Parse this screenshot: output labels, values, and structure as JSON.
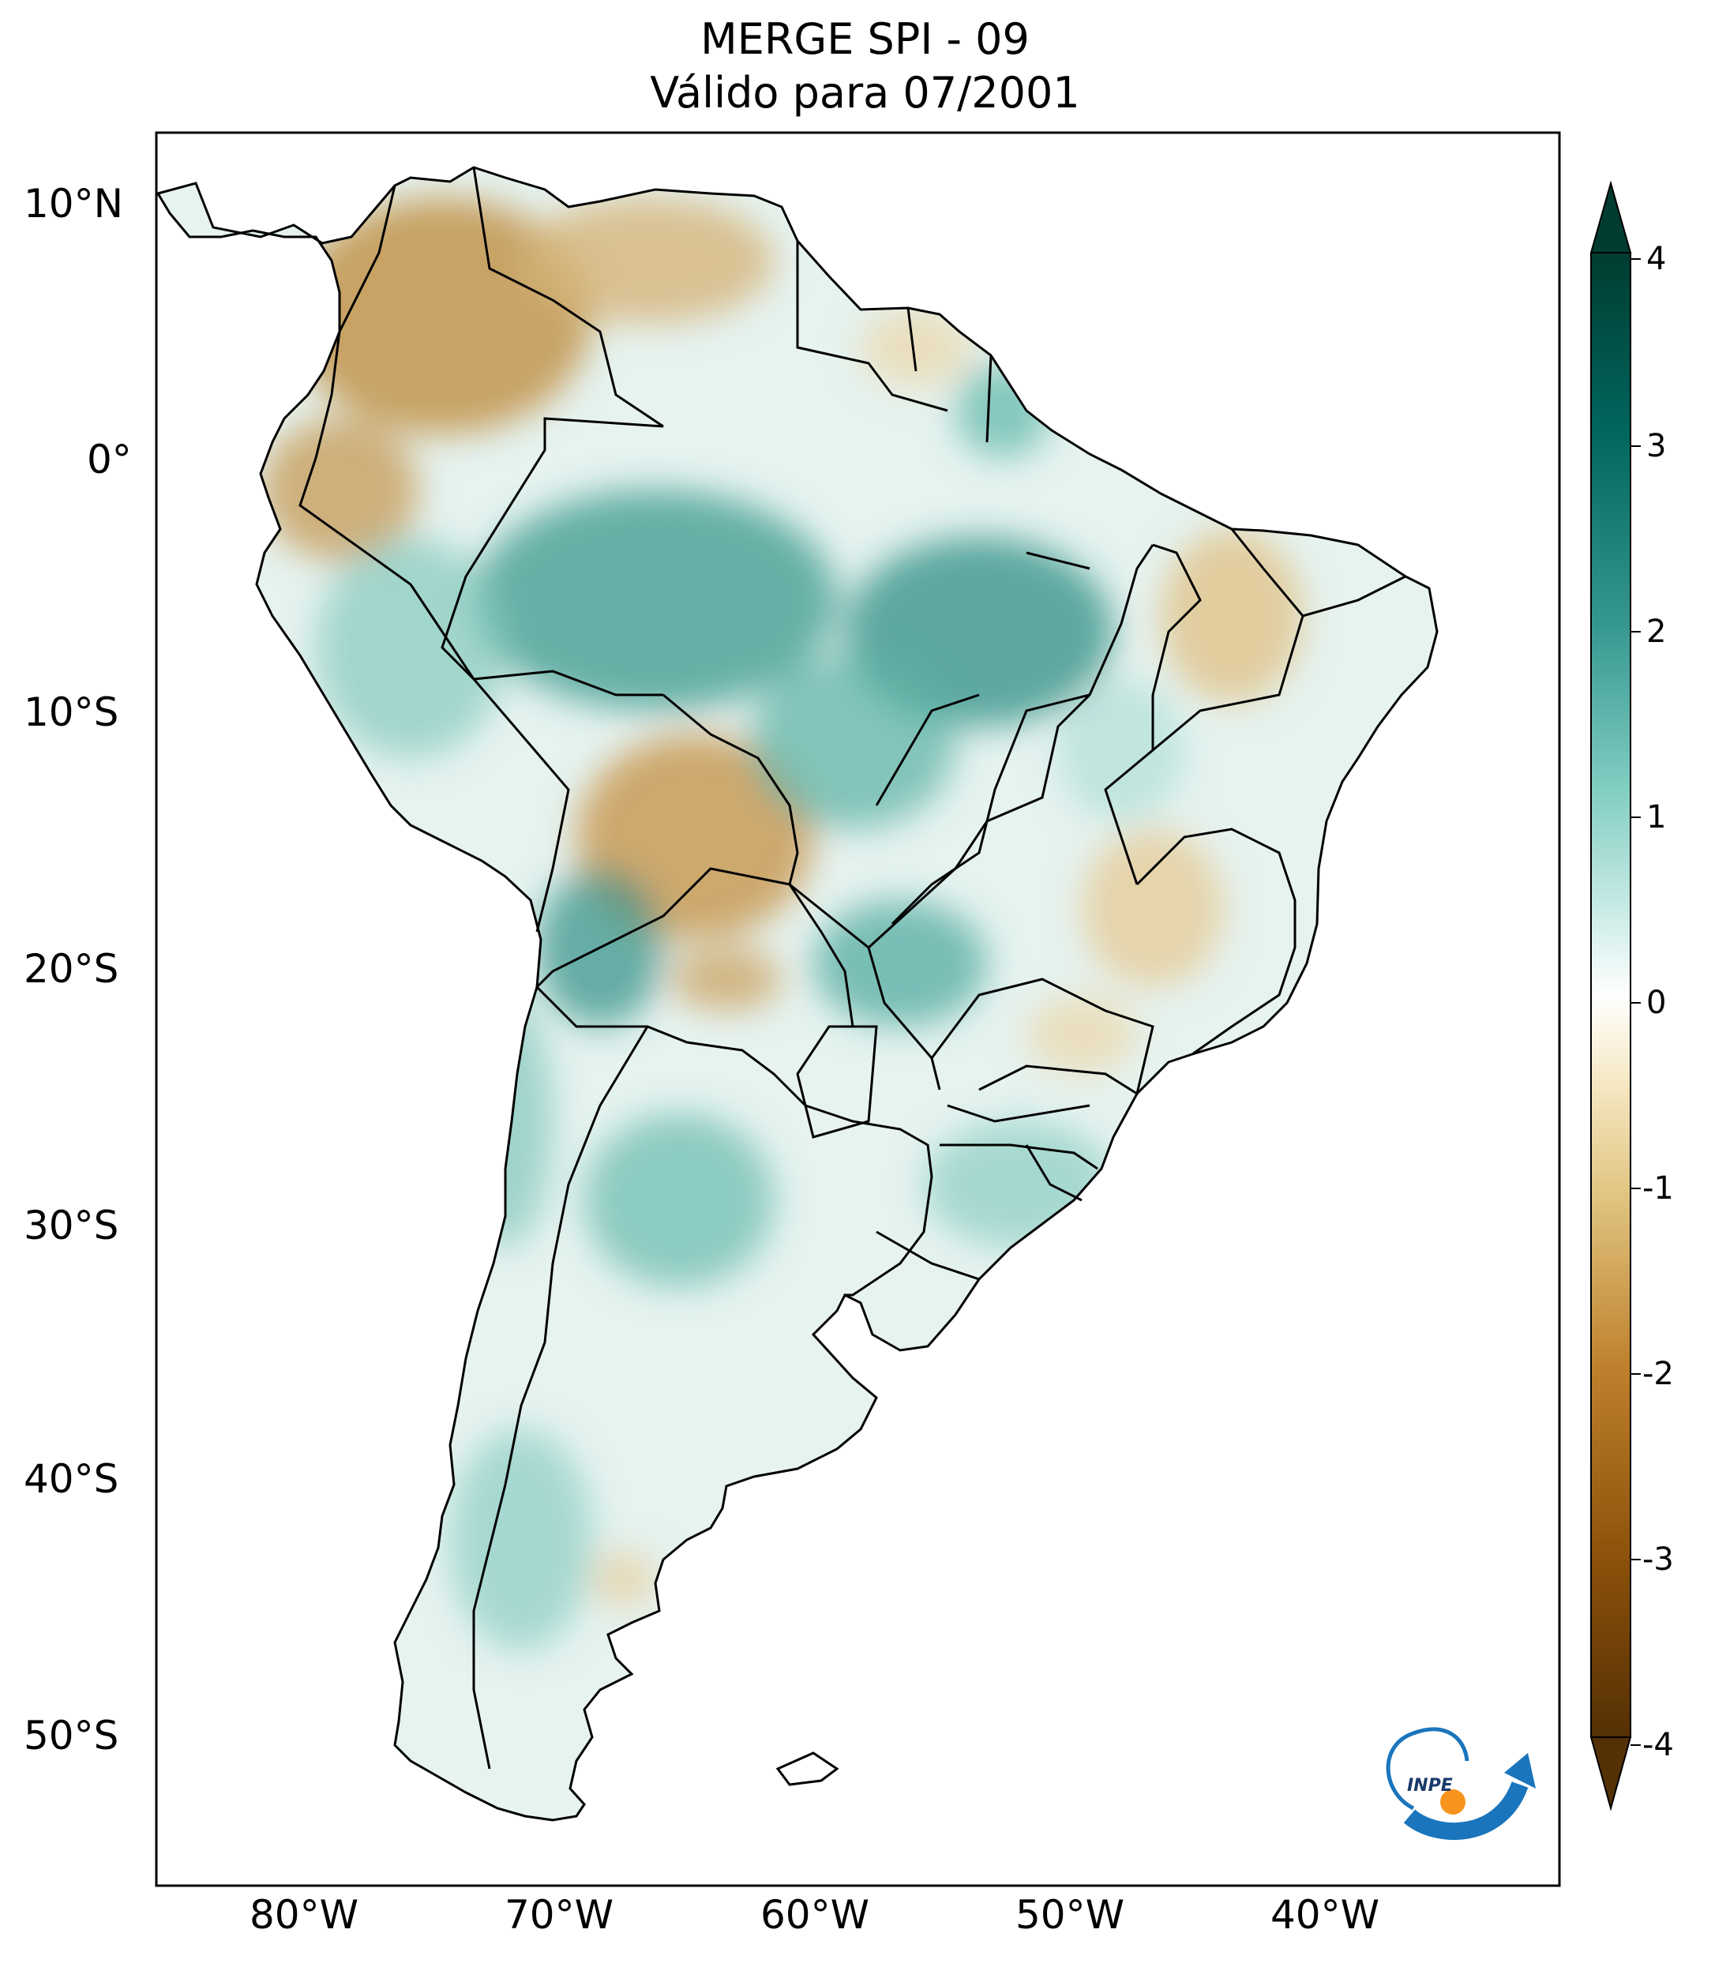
{
  "title": {
    "line1": "MERGE   SPI - 09",
    "line2": "Válido para 07/2001"
  },
  "map": {
    "region": "South America",
    "lat_labels": [
      "10°N",
      "0°",
      "10°S",
      "20°S",
      "30°S",
      "40°S",
      "50°S"
    ],
    "lon_labels": [
      "80°W",
      "70°W",
      "60°W",
      "50°W",
      "40°W"
    ],
    "land_color": "#ffffff",
    "border_color": "#000000"
  },
  "colorbar": {
    "ticks": [
      "4",
      "3",
      "2",
      "1",
      "0",
      "-1",
      "-2",
      "-3",
      "-4"
    ],
    "min": -4,
    "max": 4,
    "colors": [
      "#543005",
      "#8c510a",
      "#bf812d",
      "#dfc27d",
      "#f6e8c3",
      "#ffffff",
      "#c7eae5",
      "#80cdc1",
      "#35978f",
      "#01665e",
      "#003c30"
    ]
  },
  "logo": {
    "text": "INPE",
    "blue": "#1a75bc",
    "orange": "#f7941d"
  }
}
